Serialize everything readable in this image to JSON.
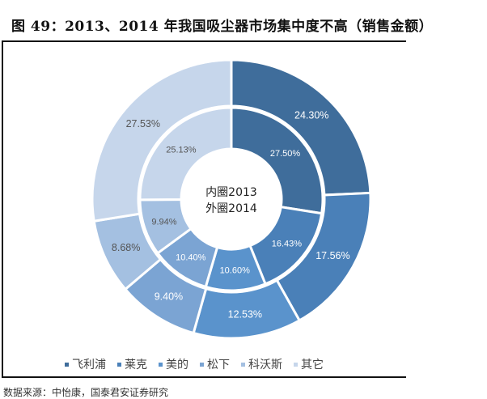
{
  "title": "图 49：2013、2014 年我国吸尘器市场集中度不高（销售金额）",
  "source": "数据来源：中怡康，国泰君安证券研究",
  "chart_data": {
    "type": "pie",
    "subtype": "nested-donut",
    "center_label": [
      "内圈2013",
      "外圈2014"
    ],
    "categories": [
      "飞利浦",
      "莱克",
      "美的",
      "松下",
      "科沃斯",
      "其它"
    ],
    "colors": [
      "#3f6d9b",
      "#4a80b8",
      "#5a93cc",
      "#7ba4d3",
      "#a4c0e1",
      "#c6d6eb"
    ],
    "series": [
      {
        "name": "2013 (inner)",
        "values": [
          27.5,
          16.43,
          10.6,
          10.4,
          9.94,
          25.13
        ],
        "labels": [
          "27.50%",
          "16.43%",
          "10.60%",
          "10.40%",
          "9.94%",
          "25.13%"
        ]
      },
      {
        "name": "2014 (outer)",
        "values": [
          24.3,
          17.56,
          12.53,
          9.4,
          8.68,
          27.53
        ],
        "labels": [
          "24.30%",
          "17.56%",
          "12.53%",
          "9.40%",
          "8.68%",
          "27.53%"
        ]
      }
    ],
    "legend_position": "bottom"
  }
}
